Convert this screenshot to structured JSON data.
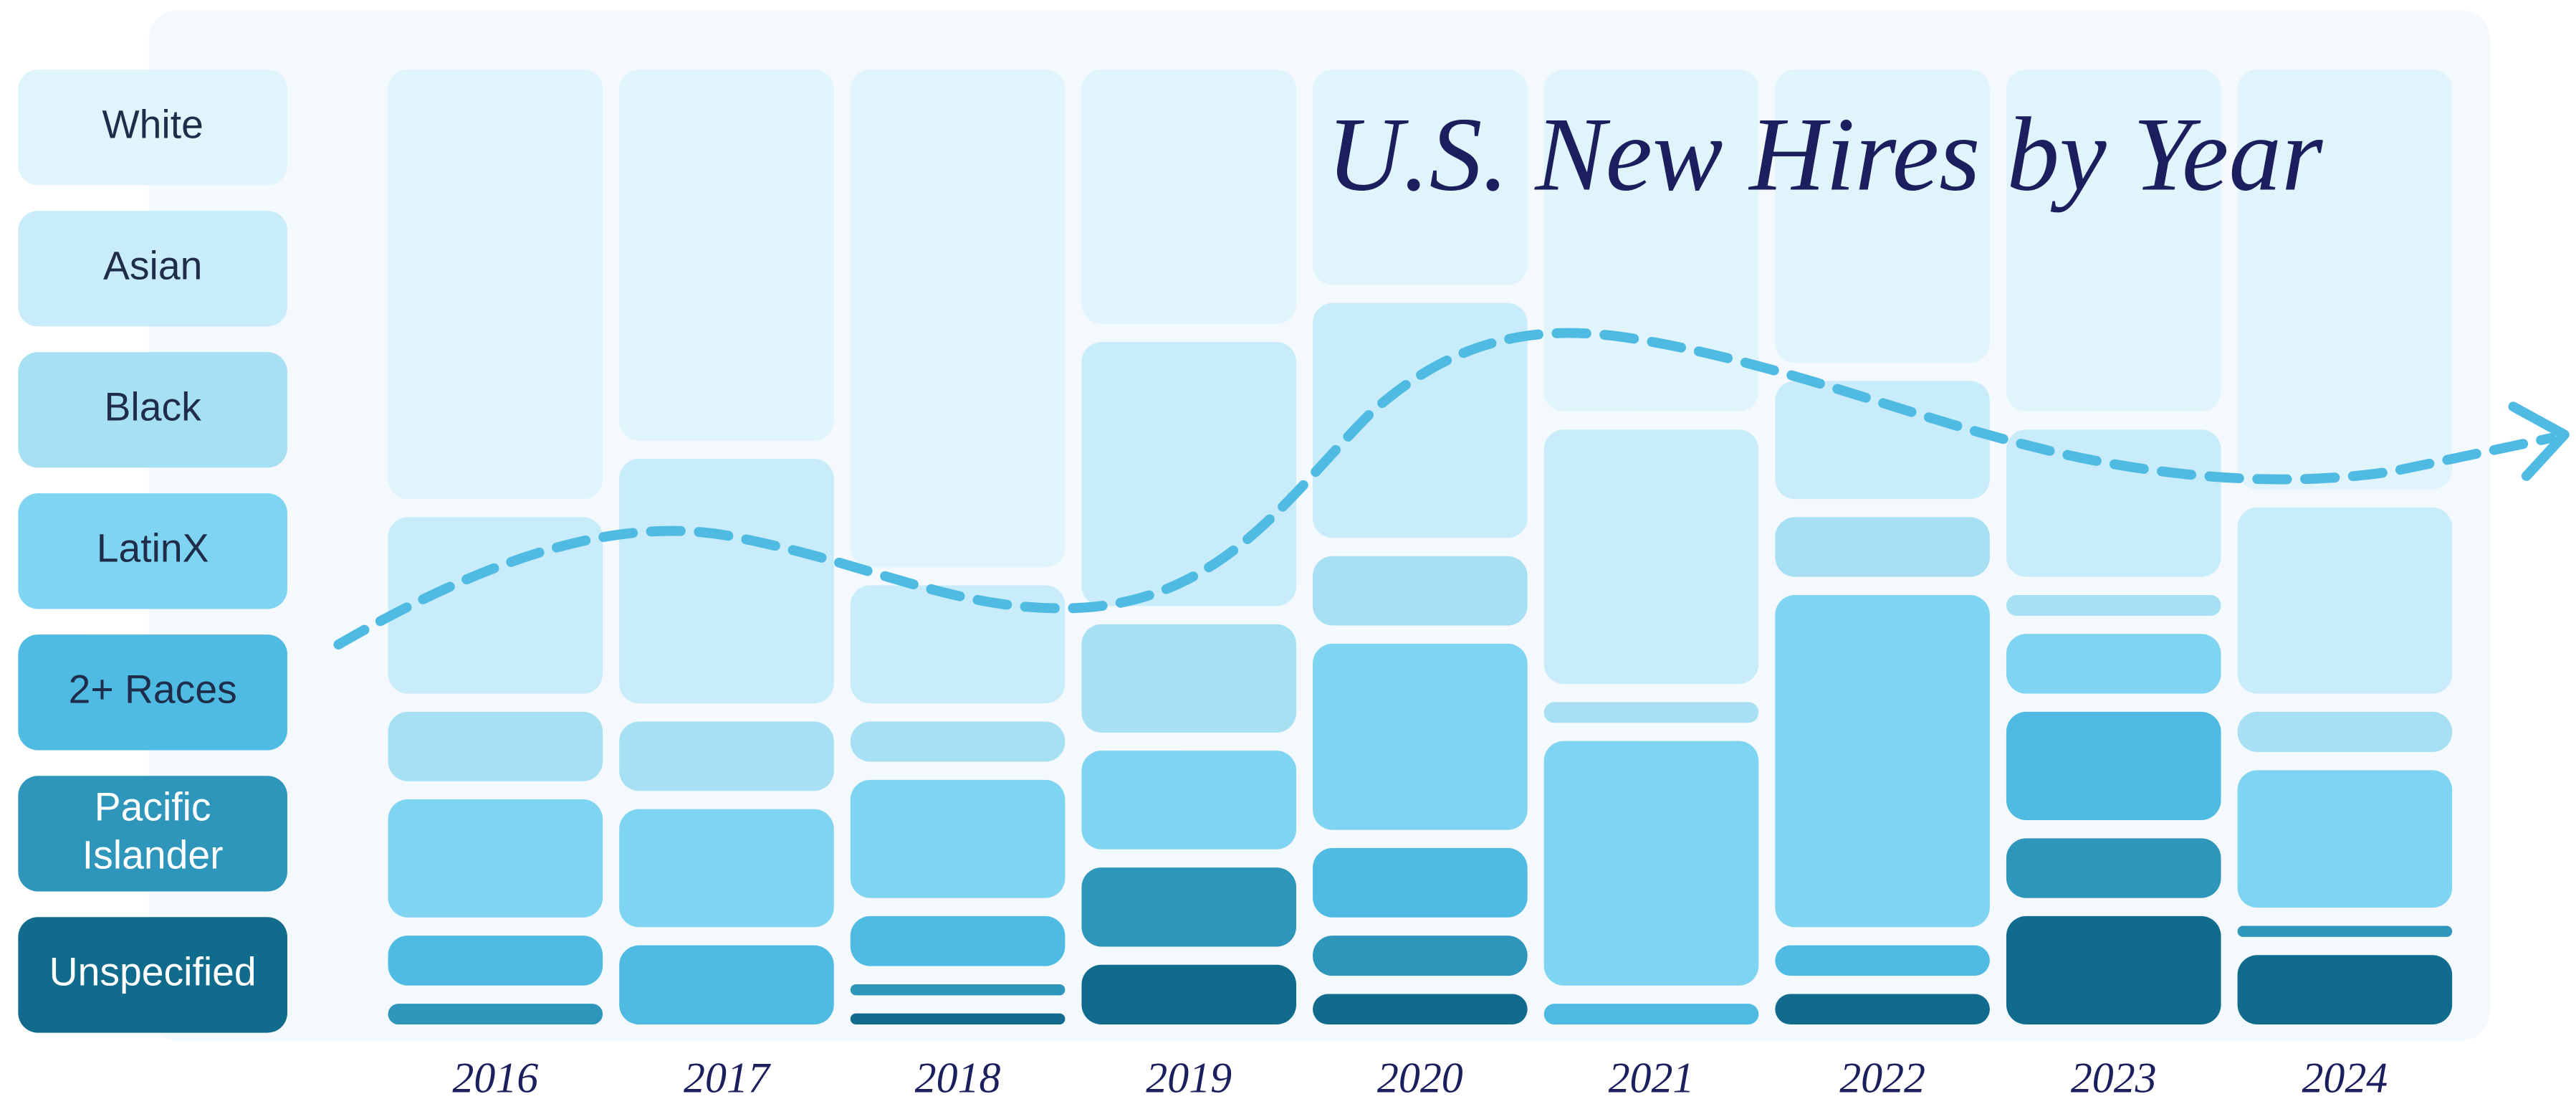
{
  "chart_data": {
    "type": "bar",
    "title": "U.S. New Hires by Year",
    "categories": [
      "2016",
      "2017",
      "2018",
      "2019",
      "2020",
      "2021",
      "2022",
      "2023",
      "2024"
    ],
    "series": [
      {
        "name": "White",
        "color": "#e0f4fb",
        "values": [
          46,
          40,
          53,
          28,
          24,
          37,
          32,
          37,
          45
        ]
      },
      {
        "name": "Asian",
        "color": "#c8ecf9",
        "values": [
          20,
          27,
          14,
          29,
          26,
          28,
          14,
          17,
          21
        ]
      },
      {
        "name": "Black",
        "color": "#a8e0f3",
        "values": [
          9,
          9,
          6,
          13,
          9,
          4,
          8,
          4,
          6
        ]
      },
      {
        "name": "LatinX",
        "color": "#7fd4f2",
        "values": [
          14,
          14,
          14,
          12,
          21,
          27,
          36,
          8,
          16
        ]
      },
      {
        "name": "2+ Races",
        "color": "#4fbbe3",
        "values": [
          7,
          10,
          7,
          0,
          9,
          4,
          5,
          13,
          0
        ]
      },
      {
        "name": "Pacific Islander",
        "color": "#2e95bb",
        "values": [
          4,
          0,
          3,
          10,
          6,
          0,
          0,
          8,
          3
        ]
      },
      {
        "name": "Unspecified",
        "color": "#116b8c",
        "values": [
          0,
          0,
          3,
          8,
          5,
          0,
          5,
          13,
          9
        ]
      }
    ],
    "stacked": true
  }
}
